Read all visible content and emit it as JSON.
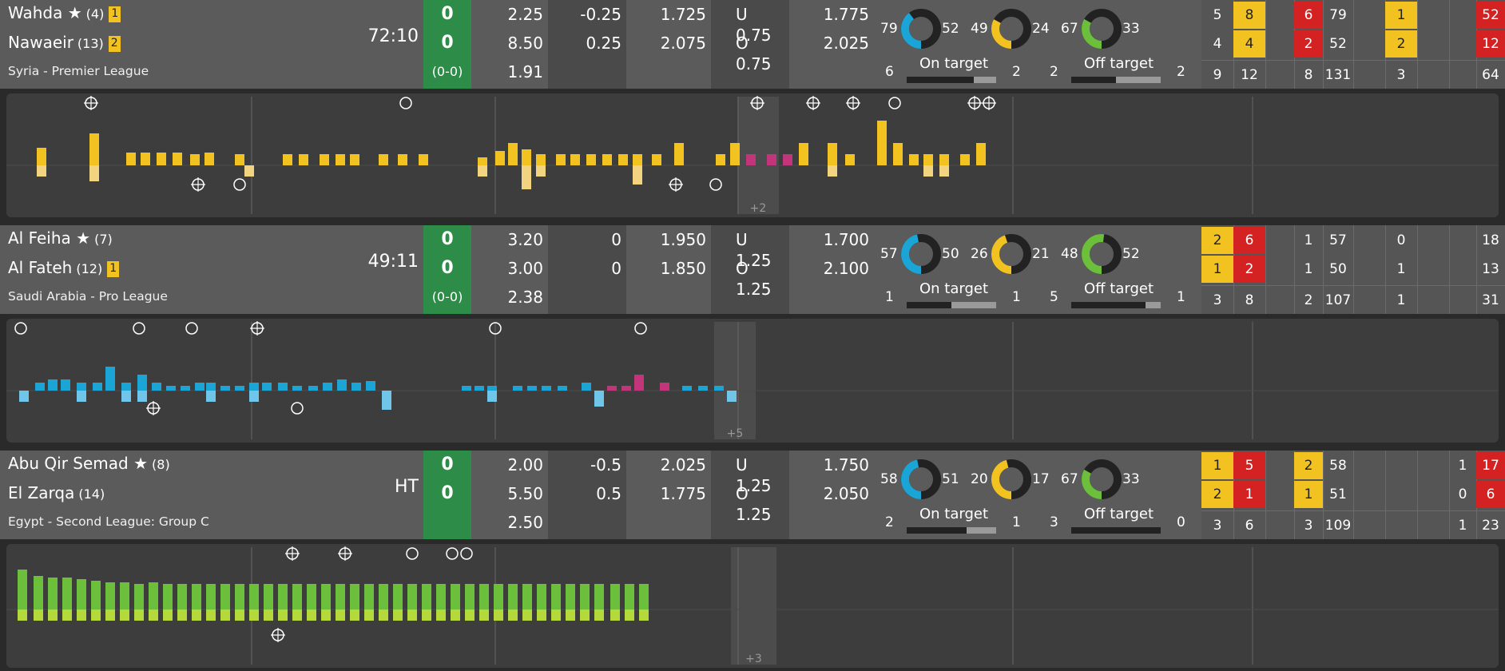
{
  "matches": [
    {
      "home": {
        "name": "Wahda ★",
        "rank": "(4)",
        "card": "1"
      },
      "away": {
        "name": "Nawaeir",
        "rank": "(13)",
        "card": "2"
      },
      "league": "Syria - Premier League",
      "clock": "72:10",
      "score": {
        "home": "0",
        "away": "0",
        "ht": "(0-0)"
      },
      "odds": {
        "a": [
          "2.25",
          "8.50",
          "1.91"
        ],
        "b": [
          "-0.25",
          "0.25"
        ],
        "c": [
          "1.725",
          "2.075"
        ],
        "d": [
          "U 0.75",
          "O 0.75"
        ],
        "e": [
          "1.775",
          "2.025"
        ]
      },
      "stats": {
        "donut1": {
          "left": "79",
          "right": "52",
          "colors": [
            "#1aa5d6",
            "#222"
          ]
        },
        "donut2": {
          "left": "49",
          "right": "24",
          "colors": [
            "#f2c220",
            "#222"
          ]
        },
        "donut3": {
          "left": "67",
          "right": "33",
          "colors": [
            "#6bbf3a",
            "#222"
          ]
        },
        "on_target": {
          "label": "On target",
          "left": "6",
          "right": "2"
        },
        "off_target": {
          "label": "Off target",
          "left": "2",
          "right": "2"
        }
      },
      "grid": [
        {
          "cells": [
            "5",
            "4",
            "9"
          ],
          "kind": ""
        },
        {
          "cells": [
            "8",
            "4",
            "12"
          ],
          "kind": "y"
        },
        {
          "cells": [
            "",
            "",
            ""
          ],
          "kind": ""
        },
        {
          "cells": [
            "6",
            "2",
            "8"
          ],
          "kind": "r"
        },
        {
          "cells": [
            "79",
            "52",
            "131"
          ],
          "kind": ""
        },
        {
          "cells": [
            "",
            "",
            ""
          ],
          "kind": ""
        },
        {
          "cells": [
            "1",
            "2",
            "3"
          ],
          "kind": "y"
        },
        {
          "cells": [
            "",
            "",
            ""
          ],
          "kind": ""
        },
        {
          "cells": [
            "",
            "",
            ""
          ],
          "kind": ""
        },
        {
          "cells": [
            "52",
            "12",
            "64"
          ],
          "kind": "r"
        }
      ],
      "timeline": {
        "extra": "+2",
        "color_home": "#f2c220",
        "color_away": "#f2d480"
      }
    },
    {
      "home": {
        "name": "Al Feiha ★",
        "rank": "(7)",
        "card": ""
      },
      "away": {
        "name": "Al Fateh",
        "rank": "(12)",
        "card": "1"
      },
      "league": "Saudi Arabia - Pro League",
      "clock": "49:11",
      "score": {
        "home": "0",
        "away": "0",
        "ht": "(0-0)"
      },
      "odds": {
        "a": [
          "3.20",
          "3.00",
          "2.38"
        ],
        "b": [
          "0",
          "0"
        ],
        "c": [
          "1.950",
          "1.850"
        ],
        "d": [
          "U 1.25",
          "O 1.25"
        ],
        "e": [
          "1.700",
          "2.100"
        ]
      },
      "stats": {
        "donut1": {
          "left": "57",
          "right": "50",
          "colors": [
            "#1aa5d6",
            "#222"
          ]
        },
        "donut2": {
          "left": "26",
          "right": "21",
          "colors": [
            "#f2c220",
            "#222"
          ]
        },
        "donut3": {
          "left": "48",
          "right": "52",
          "colors": [
            "#6bbf3a",
            "#222"
          ]
        },
        "on_target": {
          "label": "On target",
          "left": "1",
          "right": "1"
        },
        "off_target": {
          "label": "Off target",
          "left": "5",
          "right": "1"
        }
      },
      "grid": [
        {
          "cells": [
            "2",
            "1",
            "3"
          ],
          "kind": "y"
        },
        {
          "cells": [
            "6",
            "2",
            "8"
          ],
          "kind": "r"
        },
        {
          "cells": [
            "",
            "",
            ""
          ],
          "kind": ""
        },
        {
          "cells": [
            "1",
            "1",
            "2"
          ],
          "kind": ""
        },
        {
          "cells": [
            "57",
            "50",
            "107"
          ],
          "kind": ""
        },
        {
          "cells": [
            "",
            "",
            ""
          ],
          "kind": ""
        },
        {
          "cells": [
            "0",
            "1",
            "1"
          ],
          "kind": ""
        },
        {
          "cells": [
            "",
            "",
            ""
          ],
          "kind": ""
        },
        {
          "cells": [
            "",
            "",
            ""
          ],
          "kind": ""
        },
        {
          "cells": [
            "18",
            "13",
            "31"
          ],
          "kind": ""
        }
      ],
      "timeline": {
        "extra": "+5",
        "color_home": "#1aa5d6",
        "color_away": "#6fc6e8"
      }
    },
    {
      "home": {
        "name": "Abu Qir Semad ★",
        "rank": "(8)",
        "card": ""
      },
      "away": {
        "name": "El Zarqa",
        "rank": "(14)",
        "card": ""
      },
      "league": "Egypt - Second League: Group C",
      "clock": "HT",
      "score": {
        "home": "0",
        "away": "0",
        "ht": ""
      },
      "odds": {
        "a": [
          "2.00",
          "5.50",
          "2.50"
        ],
        "b": [
          "-0.5",
          "0.5"
        ],
        "c": [
          "2.025",
          "1.775"
        ],
        "d": [
          "U 1.25",
          "O 1.25"
        ],
        "e": [
          "1.750",
          "2.050"
        ]
      },
      "stats": {
        "donut1": {
          "left": "58",
          "right": "51",
          "colors": [
            "#1aa5d6",
            "#222"
          ]
        },
        "donut2": {
          "left": "20",
          "right": "17",
          "colors": [
            "#f2c220",
            "#222"
          ]
        },
        "donut3": {
          "left": "67",
          "right": "33",
          "colors": [
            "#6bbf3a",
            "#222"
          ]
        },
        "on_target": {
          "label": "On target",
          "left": "2",
          "right": "1"
        },
        "off_target": {
          "label": "Off target",
          "left": "3",
          "right": "0"
        }
      },
      "grid": [
        {
          "cells": [
            "1",
            "2",
            "3"
          ],
          "kind": "y"
        },
        {
          "cells": [
            "5",
            "1",
            "6"
          ],
          "kind": "r"
        },
        {
          "cells": [
            "",
            "",
            ""
          ],
          "kind": ""
        },
        {
          "cells": [
            "2",
            "1",
            "3"
          ],
          "kind": "y"
        },
        {
          "cells": [
            "58",
            "51",
            "109"
          ],
          "kind": ""
        },
        {
          "cells": [
            "",
            "",
            ""
          ],
          "kind": ""
        },
        {
          "cells": [
            "",
            "",
            ""
          ],
          "kind": ""
        },
        {
          "cells": [
            "",
            "",
            ""
          ],
          "kind": ""
        },
        {
          "cells": [
            "1",
            "0",
            "1"
          ],
          "kind": ""
        },
        {
          "cells": [
            "17",
            "6",
            "23"
          ],
          "kind": "r"
        }
      ],
      "timeline": {
        "extra": "+3",
        "color_home": "#6bbf3a",
        "color_away": "#b5d93a"
      }
    }
  ]
}
